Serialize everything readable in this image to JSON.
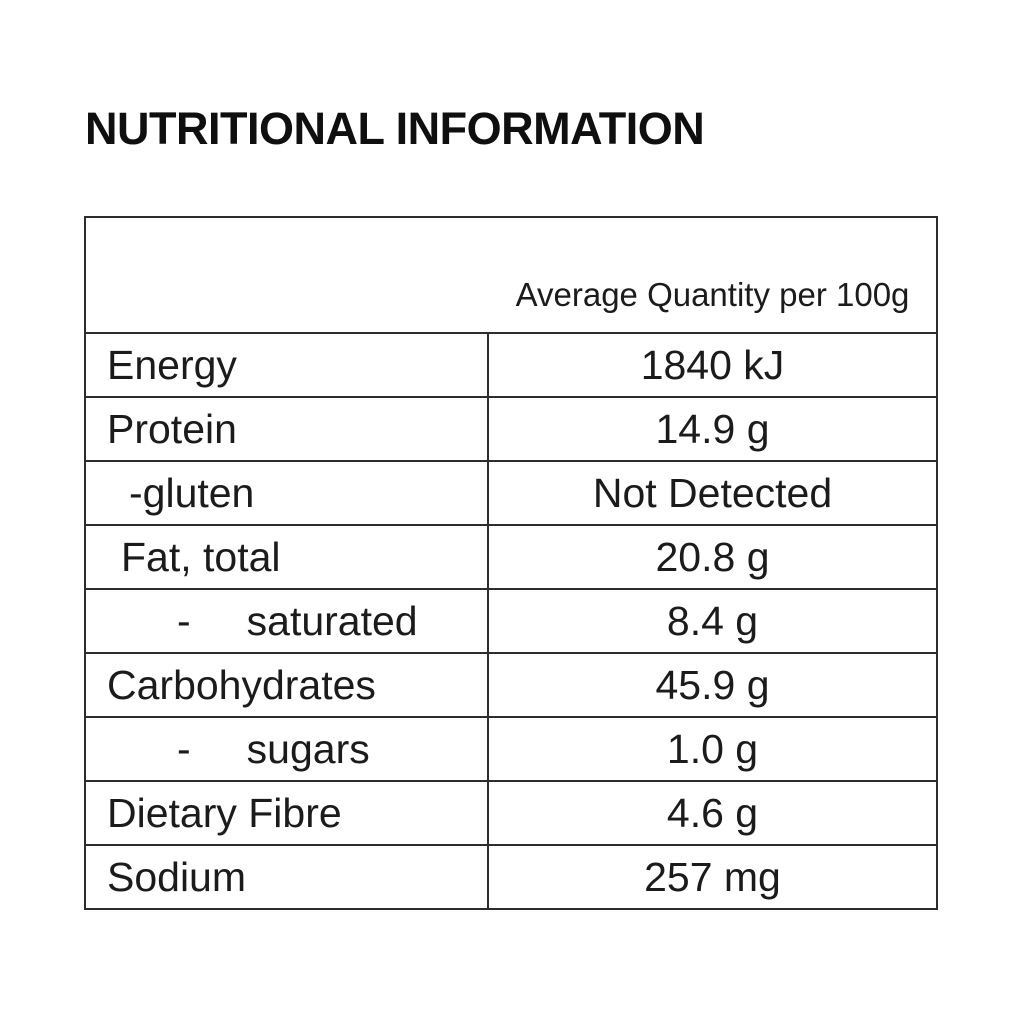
{
  "page": {
    "title": "NUTRITIONAL INFORMATION"
  },
  "table": {
    "header": "Average Quantity per 100g",
    "rows": [
      {
        "label": "Energy",
        "value": "1840 kJ"
      },
      {
        "label": "Protein",
        "value": "14.9 g"
      },
      {
        "label": "-gluten",
        "value": "Not Detected"
      },
      {
        "label": "Fat, total",
        "value": "20.8 g"
      },
      {
        "dash": "-",
        "label": "saturated",
        "value": "8.4 g"
      },
      {
        "label": "Carbohydrates",
        "value": "45.9 g"
      },
      {
        "dash": "-",
        "label": "sugars",
        "value": "1.0 g"
      },
      {
        "label": "Dietary Fibre",
        "value": "4.6 g"
      },
      {
        "label": "Sodium",
        "value": "257 mg"
      }
    ]
  },
  "colors": {
    "text": "#1b1b1b",
    "border": "#2d2d2d",
    "background": "#ffffff"
  }
}
